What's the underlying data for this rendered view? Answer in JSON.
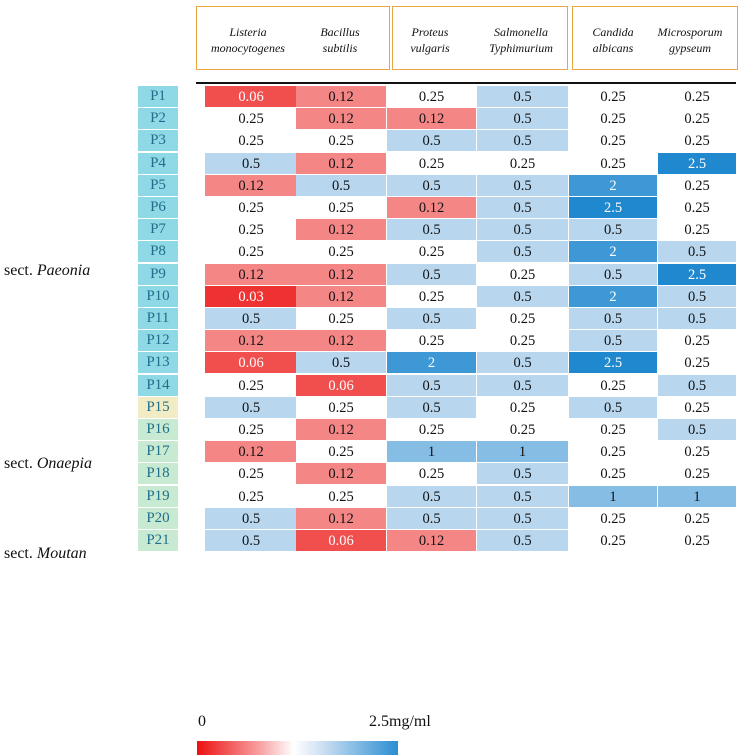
{
  "columns": [
    {
      "line1": "Listeria",
      "line2": "monocytogenes"
    },
    {
      "line1": "Bacillus",
      "line2": "subtilis"
    },
    {
      "line1": "Proteus",
      "line2": "vulgaris"
    },
    {
      "line1": "Salmonella",
      "line2": "Typhimurium"
    },
    {
      "line1": "Candida",
      "line2": "albicans"
    },
    {
      "line1": "Microsporum",
      "line2": "gypseum"
    }
  ],
  "rows": [
    "P1",
    "P2",
    "P3",
    "P4",
    "P5",
    "P6",
    "P7",
    "P8",
    "P9",
    "P10",
    "P11",
    "P12",
    "P13",
    "P14",
    "P15",
    "P16",
    "P17",
    "P18",
    "P19",
    "P20",
    "P21"
  ],
  "sections": [
    {
      "prefix": "sect.",
      "name": "Paeonia",
      "rows": [
        "P1",
        "P2",
        "P3",
        "P4",
        "P5",
        "P6",
        "P7",
        "P8",
        "P9",
        "P10",
        "P11",
        "P12",
        "P13",
        "P14"
      ]
    },
    {
      "prefix": "sect.",
      "name": "Onaepia",
      "rows": [
        "P15"
      ]
    },
    {
      "prefix": "sect.",
      "name": "Moutan",
      "rows": [
        "P16",
        "P17",
        "P18",
        "P19",
        "P20",
        "P21"
      ]
    }
  ],
  "chart_data": {
    "type": "heatmap",
    "x_categories": [
      "Listeria monocytogenes",
      "Bacillus subtilis",
      "Proteus vulgaris",
      "Salmonella Typhimurium",
      "Candida albicans",
      "Microsporum gypseum"
    ],
    "y_categories": [
      "P1",
      "P2",
      "P3",
      "P4",
      "P5",
      "P6",
      "P7",
      "P8",
      "P9",
      "P10",
      "P11",
      "P12",
      "P13",
      "P14",
      "P15",
      "P16",
      "P17",
      "P18",
      "P19",
      "P20",
      "P21"
    ],
    "values": [
      [
        "0.06",
        "0.12",
        "0.25",
        "0.5",
        "0.25",
        "0.25"
      ],
      [
        "0.25",
        "0.12",
        "0.12",
        "0.5",
        "0.25",
        "0.25"
      ],
      [
        "0.25",
        "0.25",
        "0.5",
        "0.5",
        "0.25",
        "0.25"
      ],
      [
        "0.5",
        "0.12",
        "0.25",
        "0.25",
        "0.25",
        "2.5"
      ],
      [
        "0.12",
        "0.5",
        "0.5",
        "0.5",
        "2",
        "0.25"
      ],
      [
        "0.25",
        "0.25",
        "0.12",
        "0.5",
        "2.5",
        "0.25"
      ],
      [
        "0.25",
        "0.12",
        "0.5",
        "0.5",
        "0.5",
        "0.25"
      ],
      [
        "0.25",
        "0.25",
        "0.25",
        "0.5",
        "2",
        "0.5"
      ],
      [
        "0.12",
        "0.12",
        "0.5",
        "0.25",
        "0.5",
        "2.5"
      ],
      [
        "0.03",
        "0.12",
        "0.25",
        "0.5",
        "2",
        "0.5"
      ],
      [
        "0.5",
        "0.25",
        "0.5",
        "0.25",
        "0.5",
        "0.5"
      ],
      [
        "0.12",
        "0.12",
        "0.25",
        "0.25",
        "0.5",
        "0.25"
      ],
      [
        "0.06",
        "0.5",
        "2",
        "0.5",
        "2.5",
        "0.25"
      ],
      [
        "0.25",
        "0.06",
        "0.5",
        "0.5",
        "0.25",
        "0.5"
      ],
      [
        "0.5",
        "0.25",
        "0.5",
        "0.25",
        "0.5",
        "0.25"
      ],
      [
        "0.25",
        "0.12",
        "0.25",
        "0.25",
        "0.25",
        "0.5"
      ],
      [
        "0.12",
        "0.25",
        "1",
        "1",
        "0.25",
        "0.25"
      ],
      [
        "0.25",
        "0.12",
        "0.25",
        "0.5",
        "0.25",
        "0.25"
      ],
      [
        "0.25",
        "0.25",
        "0.5",
        "0.5",
        "1",
        "1"
      ],
      [
        "0.5",
        "0.12",
        "0.5",
        "0.5",
        "0.25",
        "0.25"
      ],
      [
        "0.5",
        "0.06",
        "0.12",
        "0.5",
        "0.25",
        "0.25"
      ]
    ],
    "color_scale": {
      "min_label": "0",
      "max_label": "2.5mg/ml",
      "low_color": "#ee1010",
      "mid_color": "#ffffff",
      "high_color": "#2a8ed2"
    },
    "column_groups": [
      [
        "Listeria monocytogenes",
        "Bacillus subtilis"
      ],
      [
        "Proteus vulgaris",
        "Salmonella Typhimurium"
      ],
      [
        "Candida albicans",
        "Microsporum gypseum"
      ]
    ]
  },
  "row_label_colors": {
    "Paeonia": "#8fd8e6",
    "Onaepia": "#f2ecc4",
    "Moutan": "#c8ead2"
  },
  "group_border_color": "#e8a640"
}
